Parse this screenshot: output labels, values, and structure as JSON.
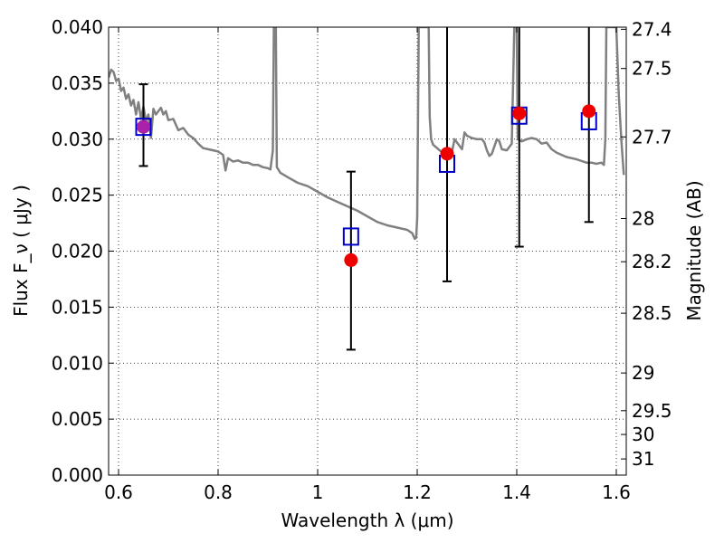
{
  "chart_data": {
    "type": "scatter",
    "title": "",
    "xlabel": "Wavelength  λ (μm)",
    "ylabel": "Flux  F_ν  ( μJy )",
    "ylabel_right": "Magnitude (AB)",
    "xlim": [
      0.58,
      1.62
    ],
    "ylim": [
      0.0,
      0.04
    ],
    "grid": true,
    "x_ticks": [
      {
        "value": 0.6,
        "label": "0.6"
      },
      {
        "value": 0.8,
        "label": "0.8"
      },
      {
        "value": 1.0,
        "label": "1"
      },
      {
        "value": 1.2,
        "label": "1.2"
      },
      {
        "value": 1.4,
        "label": "1.4"
      },
      {
        "value": 1.6,
        "label": "1.6"
      }
    ],
    "y_ticks": [
      {
        "value": 0.0,
        "label": "0.000"
      },
      {
        "value": 0.005,
        "label": "0.005"
      },
      {
        "value": 0.01,
        "label": "0.010"
      },
      {
        "value": 0.015,
        "label": "0.015"
      },
      {
        "value": 0.02,
        "label": "0.020"
      },
      {
        "value": 0.025,
        "label": "0.025"
      },
      {
        "value": 0.03,
        "label": "0.030"
      },
      {
        "value": 0.035,
        "label": "0.035"
      },
      {
        "value": 0.04,
        "label": "0.040"
      }
    ],
    "right_ticks": [
      {
        "mag": 27.4,
        "label": "27.4"
      },
      {
        "mag": 27.5,
        "label": "27.5"
      },
      {
        "mag": 27.7,
        "label": "27.7"
      },
      {
        "mag": 28.0,
        "label": "28"
      },
      {
        "mag": 28.2,
        "label": "28.2"
      },
      {
        "mag": 28.5,
        "label": "28.5"
      },
      {
        "mag": 29.0,
        "label": "29"
      },
      {
        "mag": 29.5,
        "label": "29.5"
      },
      {
        "mag": 30.0,
        "label": "30"
      },
      {
        "mag": 31.0,
        "label": "31"
      }
    ],
    "series": [
      {
        "kind": "line",
        "color": "#808080",
        "points": [
          [
            0.58,
            0.0355
          ],
          [
            0.585,
            0.0362
          ],
          [
            0.59,
            0.036
          ],
          [
            0.595,
            0.0352
          ],
          [
            0.6,
            0.0354
          ],
          [
            0.605,
            0.0343
          ],
          [
            0.61,
            0.0346
          ],
          [
            0.615,
            0.0336
          ],
          [
            0.62,
            0.034
          ],
          [
            0.625,
            0.033
          ],
          [
            0.63,
            0.0335
          ],
          [
            0.635,
            0.0322
          ],
          [
            0.64,
            0.0333
          ],
          [
            0.645,
            0.0318
          ],
          [
            0.65,
            0.0329
          ],
          [
            0.655,
            0.0316
          ],
          [
            0.66,
            0.0322
          ],
          [
            0.665,
            0.0301
          ],
          [
            0.67,
            0.0327
          ],
          [
            0.675,
            0.0322
          ],
          [
            0.68,
            0.0325
          ],
          [
            0.685,
            0.0328
          ],
          [
            0.69,
            0.0322
          ],
          [
            0.695,
            0.0325
          ],
          [
            0.7,
            0.0317
          ],
          [
            0.71,
            0.0318
          ],
          [
            0.72,
            0.0308
          ],
          [
            0.73,
            0.031
          ],
          [
            0.74,
            0.0304
          ],
          [
            0.75,
            0.0301
          ],
          [
            0.76,
            0.0296
          ],
          [
            0.77,
            0.0292
          ],
          [
            0.78,
            0.0291
          ],
          [
            0.79,
            0.029
          ],
          [
            0.8,
            0.0289
          ],
          [
            0.81,
            0.0286
          ],
          [
            0.815,
            0.0272
          ],
          [
            0.82,
            0.0283
          ],
          [
            0.83,
            0.028
          ],
          [
            0.84,
            0.0281
          ],
          [
            0.85,
            0.0279
          ],
          [
            0.86,
            0.0279
          ],
          [
            0.87,
            0.0277
          ],
          [
            0.88,
            0.0277
          ],
          [
            0.89,
            0.0275
          ],
          [
            0.9,
            0.0274
          ],
          [
            0.905,
            0.0273
          ],
          [
            0.91,
            0.029
          ],
          [
            0.912,
            0.04
          ],
          [
            0.916,
            0.04
          ],
          [
            0.918,
            0.0275
          ],
          [
            0.925,
            0.027
          ],
          [
            0.94,
            0.0266
          ],
          [
            0.96,
            0.0261
          ],
          [
            0.98,
            0.0258
          ],
          [
            1.0,
            0.0253
          ],
          [
            1.02,
            0.0248
          ],
          [
            1.04,
            0.0244
          ],
          [
            1.06,
            0.024
          ],
          [
            1.08,
            0.0236
          ],
          [
            1.1,
            0.0231
          ],
          [
            1.12,
            0.0226
          ],
          [
            1.14,
            0.0223
          ],
          [
            1.16,
            0.0221
          ],
          [
            1.18,
            0.0219
          ],
          [
            1.19,
            0.0216
          ],
          [
            1.195,
            0.0211
          ],
          [
            1.198,
            0.0212
          ],
          [
            1.2,
            0.023
          ],
          [
            1.203,
            0.04
          ],
          [
            1.223,
            0.04
          ],
          [
            1.225,
            0.032
          ],
          [
            1.228,
            0.03
          ],
          [
            1.232,
            0.0295
          ],
          [
            1.24,
            0.0292
          ],
          [
            1.25,
            0.0288
          ],
          [
            1.26,
            0.0286
          ],
          [
            1.27,
            0.0289
          ],
          [
            1.275,
            0.03
          ],
          [
            1.28,
            0.0297
          ],
          [
            1.29,
            0.0291
          ],
          [
            1.295,
            0.0306
          ],
          [
            1.3,
            0.0303
          ],
          [
            1.31,
            0.0301
          ],
          [
            1.32,
            0.03
          ],
          [
            1.33,
            0.03
          ],
          [
            1.335,
            0.0297
          ],
          [
            1.34,
            0.029
          ],
          [
            1.345,
            0.0285
          ],
          [
            1.35,
            0.0287
          ],
          [
            1.36,
            0.03
          ],
          [
            1.365,
            0.0298
          ],
          [
            1.37,
            0.0291
          ],
          [
            1.38,
            0.029
          ],
          [
            1.39,
            0.0296
          ],
          [
            1.395,
            0.04
          ],
          [
            1.4,
            0.04
          ],
          [
            1.402,
            0.03
          ],
          [
            1.41,
            0.0298
          ],
          [
            1.42,
            0.03
          ],
          [
            1.43,
            0.0301
          ],
          [
            1.44,
            0.03
          ],
          [
            1.45,
            0.0296
          ],
          [
            1.46,
            0.0297
          ],
          [
            1.47,
            0.0291
          ],
          [
            1.48,
            0.0288
          ],
          [
            1.49,
            0.0286
          ],
          [
            1.5,
            0.0284
          ],
          [
            1.52,
            0.0282
          ],
          [
            1.54,
            0.0279
          ],
          [
            1.55,
            0.0279
          ],
          [
            1.56,
            0.0278
          ],
          [
            1.57,
            0.0279
          ],
          [
            1.575,
            0.0277
          ],
          [
            1.578,
            0.03
          ],
          [
            1.58,
            0.04
          ],
          [
            1.6,
            0.04
          ],
          [
            1.605,
            0.034
          ],
          [
            1.61,
            0.03
          ],
          [
            1.615,
            0.0268
          ]
        ]
      },
      {
        "kind": "scatter",
        "marker": "open-square",
        "color": "#0000cc",
        "points": [
          [
            0.65,
            0.0311
          ],
          [
            1.067,
            0.0213
          ],
          [
            1.26,
            0.0278
          ],
          [
            1.405,
            0.0321
          ],
          [
            1.545,
            0.0316
          ]
        ]
      },
      {
        "kind": "scatter",
        "marker": "filled-circle",
        "color": "#ee0000",
        "points": [
          [
            0.65,
            0.0311
          ],
          [
            1.067,
            0.0192
          ],
          [
            1.26,
            0.0287
          ],
          [
            1.405,
            0.0323
          ],
          [
            1.545,
            0.0325
          ]
        ],
        "error_low": [
          0.0276,
          0.0112,
          0.0173,
          0.0204,
          0.0226
        ],
        "error_high": [
          0.0349,
          0.0271,
          0.0405,
          0.0405,
          0.0405
        ]
      }
    ],
    "colors": {
      "model": "#808080",
      "square": "#0000cc",
      "circle": "#ee0000",
      "overlap": "#aa22aa"
    }
  }
}
